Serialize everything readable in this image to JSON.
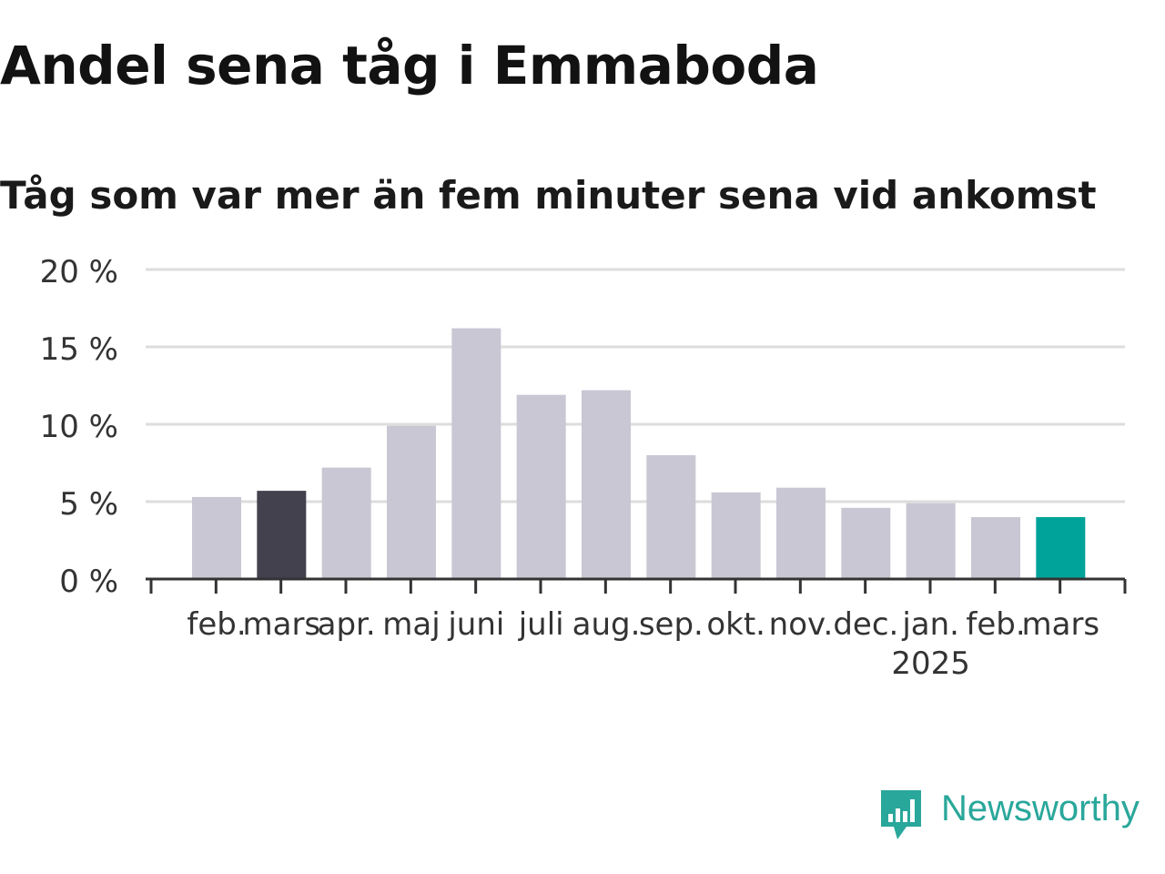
{
  "brand": {
    "name": "Newsworthy",
    "color": "#2aa79b",
    "icon": "newsworthy-logo-icon"
  },
  "colors": {
    "bar_default": "#c8c7d3",
    "bar_highlight_prev": "#43414e",
    "bar_highlight_current": "#00a39a",
    "grid": "#dddddd",
    "axis": "#333333",
    "text": "#333333"
  },
  "chart_data": {
    "type": "bar",
    "title": "Andel sena tåg i Emmaboda",
    "subtitle": "Tåg som var mer än fem minuter sena vid ankomst",
    "xlabel": "",
    "ylabel": "",
    "categories": [
      "feb.",
      "mars",
      "apr.",
      "maj",
      "juni",
      "juli",
      "aug.",
      "sep.",
      "okt.",
      "nov.",
      "dec.",
      "jan.",
      "feb.",
      "mars"
    ],
    "year_labels": [
      "",
      "",
      "",
      "",
      "",
      "",
      "",
      "",
      "",
      "",
      "",
      "2025",
      "",
      ""
    ],
    "values": [
      5.3,
      5.7,
      7.2,
      9.9,
      16.2,
      11.9,
      12.2,
      8.0,
      5.6,
      5.9,
      4.6,
      4.9,
      4.0,
      4.0
    ],
    "highlight": [
      "default",
      "prev",
      "default",
      "default",
      "default",
      "default",
      "default",
      "default",
      "default",
      "default",
      "default",
      "default",
      "default",
      "current"
    ],
    "ylim": [
      0,
      20
    ],
    "yticks": [
      0,
      5,
      10,
      15,
      20
    ],
    "ytick_labels": [
      "0 %",
      "5 %",
      "10 %",
      "15 %",
      "20 %"
    ],
    "grid": true,
    "legend": "none"
  }
}
